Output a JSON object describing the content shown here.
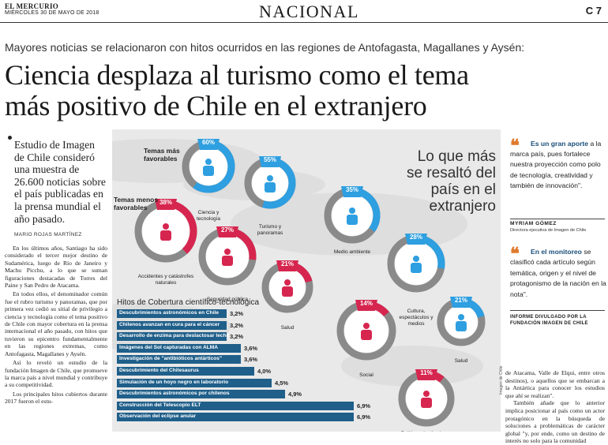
{
  "masthead": {
    "paper": "EL MERCURIO",
    "date": "MIÉRCOLES 30 DE MAYO DE 2018",
    "section": "NACIONAL",
    "page": "C 7"
  },
  "article": {
    "kicker": "Mayores noticias se relacionaron con hitos ocurridos en las regiones de Antofagasta, Magallanes y Aysén:",
    "headline_1": "Ciencia desplaza al turismo como el tema",
    "headline_2": "más positivo de Chile en el extranjero",
    "lead": "Estudio de Imagen de Chile consideró una muestra de 26.600 noticias sobre el país publicadas en la prensa mundial el año pasado.",
    "byline": "MARIO ROJAS MARTÍNEZ",
    "body": [
      "En los últimos años, Santiago ha sido considerado el tercer mejor destino de Sudamérica, luego de Río de Janeiro y Machu Picchu, a lo que se suman figuraciones destacadas de Torres del Paine y San Pedro de Atacama.",
      "En todos ellos, el denominador común fue el rubro turismo y panoramas, que por primera vez cedió su sitial de privilegio a ciencia y tecnología como el tema positivo de Chile con mayor cobertura en la prensa internacional el año pasado, con hitos que tuvieron su epicentro fundamentalmente en las regiones extremas, como Antofagasta, Magallanes y Aysén.",
      "Así lo reveló un estudio de la fundación Imagen de Chile, que promueve la marca país a nivel mundial y contribuye a su competitividad.",
      "Los principales hitos cubiertos durante 2017 fueron el estu-"
    ],
    "body_right": [
      "de Atacama, Valle de Elqui, entre otros destinos), o aquellos que se embarcan a la Antártica para conocer los estudios que ahí se realizan\".",
      "También añade que lo anterior implica posicionar al país como un actor protagónico en la búsqueda de soluciones a problemáticas de carácter global \"y, por ende, como un destino de interés no solo para la comunidad"
    ]
  },
  "infographic": {
    "title_lines": [
      "Lo que más",
      "se resaltó del",
      "país en el",
      "extranjero"
    ],
    "favorable_label": "Temas más favorables",
    "unfavorable_label": "Temas menos favorables",
    "topics": [
      {
        "pct": "60%",
        "label": "Ciencia y tecnología",
        "value": 60,
        "color": "#2e9fe0"
      },
      {
        "pct": "55%",
        "label": "Turismo y panoramas",
        "value": 55,
        "color": "#2e9fe0"
      },
      {
        "pct": "35%",
        "label": "Medio ambiente",
        "value": 35,
        "color": "#2e9fe0"
      },
      {
        "pct": "28%",
        "label": "Cultura, espectáculos y medios",
        "value": 28,
        "color": "#2e9fe0"
      },
      {
        "pct": "21%",
        "label": "Salud",
        "value": 21,
        "color": "#2e9fe0"
      },
      {
        "pct": "38%",
        "label": "Accidentes y catástrofes naturales",
        "value": 38,
        "color": "#d6264f"
      },
      {
        "pct": "27%",
        "label": "Seguridad pública",
        "value": 27,
        "color": "#d6264f"
      },
      {
        "pct": "21%",
        "label": "Salud",
        "value": 21,
        "color": "#d6264f"
      },
      {
        "pct": "14%",
        "label": "Social",
        "value": 14,
        "color": "#d6264f"
      },
      {
        "pct": "11%",
        "label": "Política e instituciones",
        "value": 11,
        "color": "#d6264f"
      }
    ],
    "hitos_title": "Hitos de Cobertura científico-tecnológica",
    "hitos": [
      {
        "name": "Descubrimientos astronómicos en Chile",
        "pct": "3,2%",
        "value": 3.2
      },
      {
        "name": "Chilenos avanzan en cura para el cáncer",
        "pct": "3,2%",
        "value": 3.2
      },
      {
        "name": "Desarrollo de enzima para deslactosar leche",
        "pct": "3,2%",
        "value": 3.2
      },
      {
        "name": "Imágenes del Sol capturadas con ALMA",
        "pct": "3,6%",
        "value": 3.6
      },
      {
        "name": "Investigación de \"antibióticos antárticos\"",
        "pct": "3,6%",
        "value": 3.6
      },
      {
        "name": "Descubrimiento del Chilesaurus",
        "pct": "4,0%",
        "value": 4.0
      },
      {
        "name": "Simulación de un hoyo negro en laboratorio",
        "pct": "4,5%",
        "value": 4.5
      },
      {
        "name": "Descubrimientos astronómicos por chilenos",
        "pct": "4,9%",
        "value": 4.9
      },
      {
        "name": "Construcción del Telescopio ELT",
        "pct": "6,9%",
        "value": 6.9
      },
      {
        "name": "Observación del eclipse anular",
        "pct": "6,9%",
        "value": 6.9
      }
    ],
    "credit": "Imagen de Chile"
  },
  "sidebar": {
    "quote1_bold": "Es un gran aporte",
    "quote1_rest": " a la marca país, pues fortalece nuestra proyección como polo de tecnología, creatividad y también de innovación\".",
    "quote1_name": "MYRIAM GÓMEZ",
    "quote1_role": "Directora ejecutiva de Imagen de Chile",
    "quote2_bold": "En el monitoreo",
    "quote2_rest": " se clasificó cada artículo según temática, origen y el nivel de protagonismo de la nación en la nota\".",
    "report": "INFORME DIVULGADO POR LA FUNDACIÓN IMAGEN DE CHILE"
  },
  "colors": {
    "favorable": "#2e9fe0",
    "unfavorable": "#d6264f",
    "bar": "#1f5f8a",
    "quote_mark": "#e07a2e",
    "ring_bg": "#8a8a8a"
  }
}
